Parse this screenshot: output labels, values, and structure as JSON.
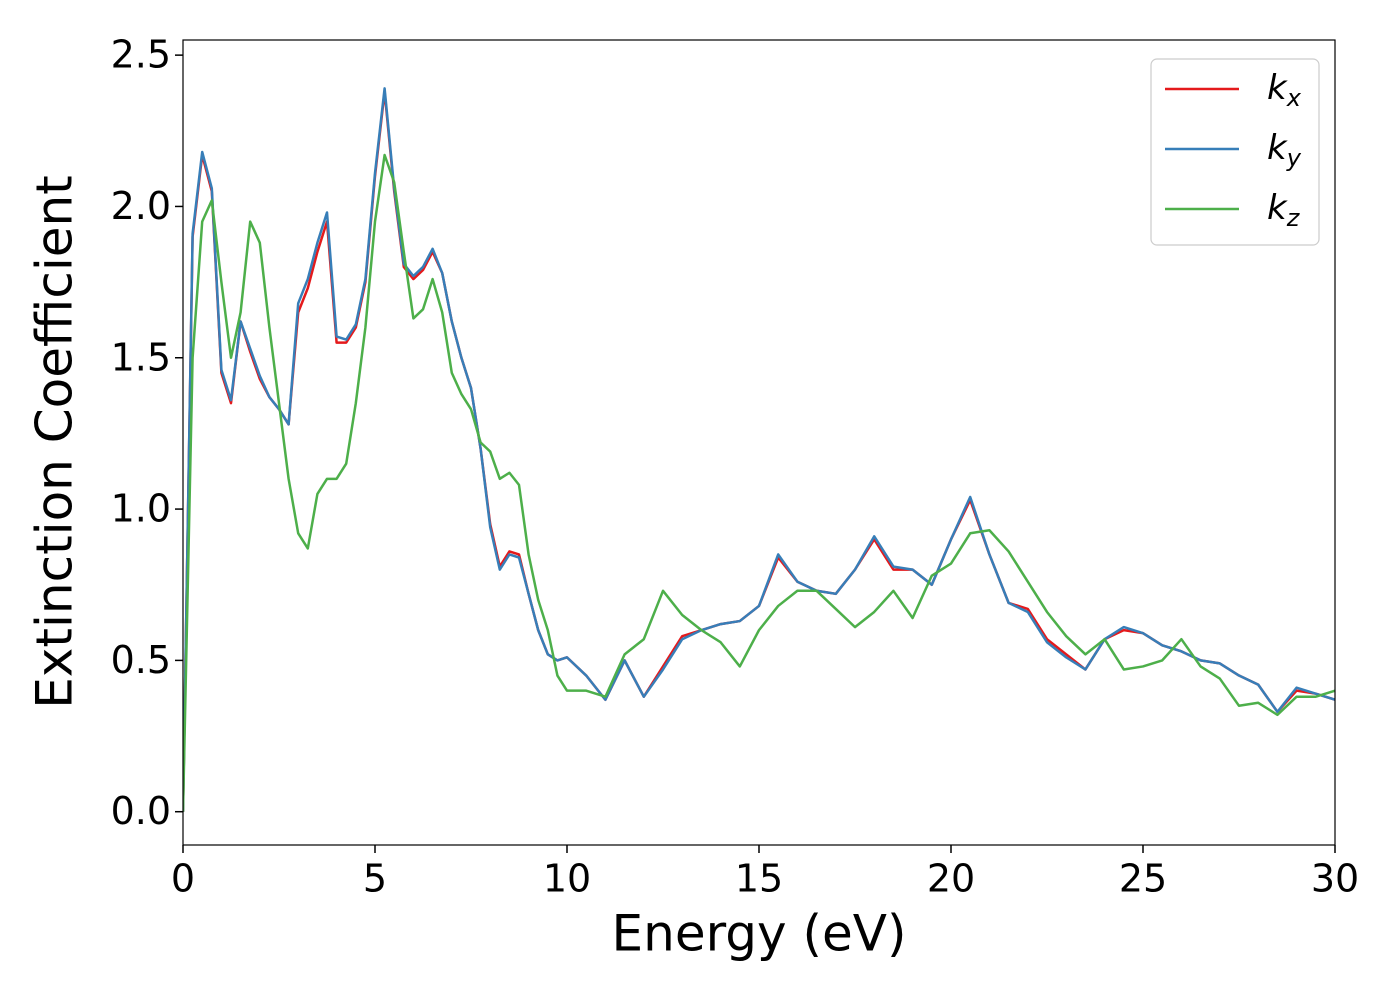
{
  "chart_data": {
    "type": "line",
    "xlabel": "Energy (eV)",
    "ylabel": "Extinction Coefficient",
    "x": [
      0,
      0.25,
      0.5,
      0.75,
      1,
      1.25,
      1.5,
      1.75,
      2,
      2.25,
      2.5,
      2.75,
      3,
      3.25,
      3.5,
      3.75,
      4,
      4.25,
      4.5,
      4.75,
      5,
      5.25,
      5.5,
      5.75,
      6,
      6.25,
      6.5,
      6.75,
      7,
      7.25,
      7.5,
      7.75,
      8,
      8.25,
      8.5,
      8.75,
      9,
      9.25,
      9.5,
      9.75,
      10,
      10.5,
      11,
      11.5,
      12,
      12.5,
      13,
      13.5,
      14,
      14.5,
      15,
      15.5,
      16,
      16.5,
      17,
      17.5,
      18,
      18.5,
      19,
      19.5,
      20,
      20.5,
      21,
      21.5,
      22,
      22.5,
      23,
      23.5,
      24,
      24.5,
      25,
      25.5,
      26,
      26.5,
      27,
      27.5,
      28,
      28.5,
      29,
      29.5,
      30
    ],
    "series": [
      {
        "name": "kx",
        "color": "#e41a1c",
        "values": [
          0,
          1.9,
          2.17,
          2.05,
          1.45,
          1.35,
          1.62,
          1.52,
          1.43,
          1.37,
          1.33,
          1.28,
          1.65,
          1.73,
          1.85,
          1.95,
          1.55,
          1.55,
          1.6,
          1.75,
          2.1,
          2.38,
          2.05,
          1.8,
          1.76,
          1.79,
          1.85,
          1.78,
          1.62,
          1.5,
          1.4,
          1.2,
          0.95,
          0.81,
          0.86,
          0.85,
          0.72,
          0.6,
          0.52,
          0.5,
          0.51,
          0.45,
          0.37,
          0.5,
          0.38,
          0.48,
          0.58,
          0.6,
          0.62,
          0.63,
          0.68,
          0.84,
          0.76,
          0.73,
          0.72,
          0.8,
          0.9,
          0.8,
          0.8,
          0.75,
          0.9,
          1.03,
          0.85,
          0.69,
          0.67,
          0.57,
          0.52,
          0.47,
          0.57,
          0.6,
          0.59,
          0.55,
          0.53,
          0.5,
          0.49,
          0.45,
          0.42,
          0.33,
          0.4,
          0.39,
          0.37
        ]
      },
      {
        "name": "ky",
        "color": "#377eb8",
        "values": [
          0,
          1.91,
          2.18,
          2.06,
          1.46,
          1.36,
          1.62,
          1.53,
          1.44,
          1.37,
          1.33,
          1.28,
          1.68,
          1.76,
          1.88,
          1.98,
          1.57,
          1.56,
          1.61,
          1.76,
          2.11,
          2.39,
          2.06,
          1.81,
          1.77,
          1.8,
          1.86,
          1.78,
          1.62,
          1.5,
          1.4,
          1.2,
          0.94,
          0.8,
          0.85,
          0.84,
          0.72,
          0.6,
          0.52,
          0.5,
          0.51,
          0.45,
          0.37,
          0.5,
          0.38,
          0.47,
          0.57,
          0.6,
          0.62,
          0.63,
          0.68,
          0.85,
          0.76,
          0.73,
          0.72,
          0.8,
          0.91,
          0.81,
          0.8,
          0.75,
          0.9,
          1.04,
          0.85,
          0.69,
          0.66,
          0.56,
          0.51,
          0.47,
          0.57,
          0.61,
          0.59,
          0.55,
          0.53,
          0.5,
          0.49,
          0.45,
          0.42,
          0.33,
          0.41,
          0.39,
          0.37
        ]
      },
      {
        "name": "kz",
        "color": "#4daf4a",
        "values": [
          0,
          1.5,
          1.95,
          2.02,
          1.75,
          1.5,
          1.65,
          1.95,
          1.88,
          1.6,
          1.35,
          1.1,
          0.92,
          0.87,
          1.05,
          1.1,
          1.1,
          1.15,
          1.35,
          1.6,
          1.95,
          2.17,
          2.08,
          1.85,
          1.63,
          1.66,
          1.76,
          1.65,
          1.45,
          1.38,
          1.33,
          1.22,
          1.19,
          1.1,
          1.12,
          1.08,
          0.85,
          0.7,
          0.6,
          0.45,
          0.4,
          0.4,
          0.38,
          0.52,
          0.57,
          0.73,
          0.65,
          0.6,
          0.56,
          0.48,
          0.6,
          0.68,
          0.73,
          0.73,
          0.67,
          0.61,
          0.66,
          0.73,
          0.64,
          0.78,
          0.82,
          0.92,
          0.93,
          0.86,
          0.76,
          0.66,
          0.58,
          0.52,
          0.57,
          0.47,
          0.48,
          0.5,
          0.57,
          0.48,
          0.44,
          0.35,
          0.36,
          0.32,
          0.38,
          0.38,
          0.4
        ]
      }
    ],
    "xlim": [
      0,
      30
    ],
    "ylim": [
      -0.11,
      2.55
    ],
    "xticks": [
      0,
      5,
      10,
      15,
      20,
      25,
      30
    ],
    "yticks": [
      {
        "value": 0,
        "label": "0.0"
      },
      0.5,
      {
        "value": 1,
        "label": "1.0"
      },
      1.5,
      {
        "value": 2,
        "label": "2.0"
      },
      2.5
    ],
    "legend": "upper right"
  }
}
